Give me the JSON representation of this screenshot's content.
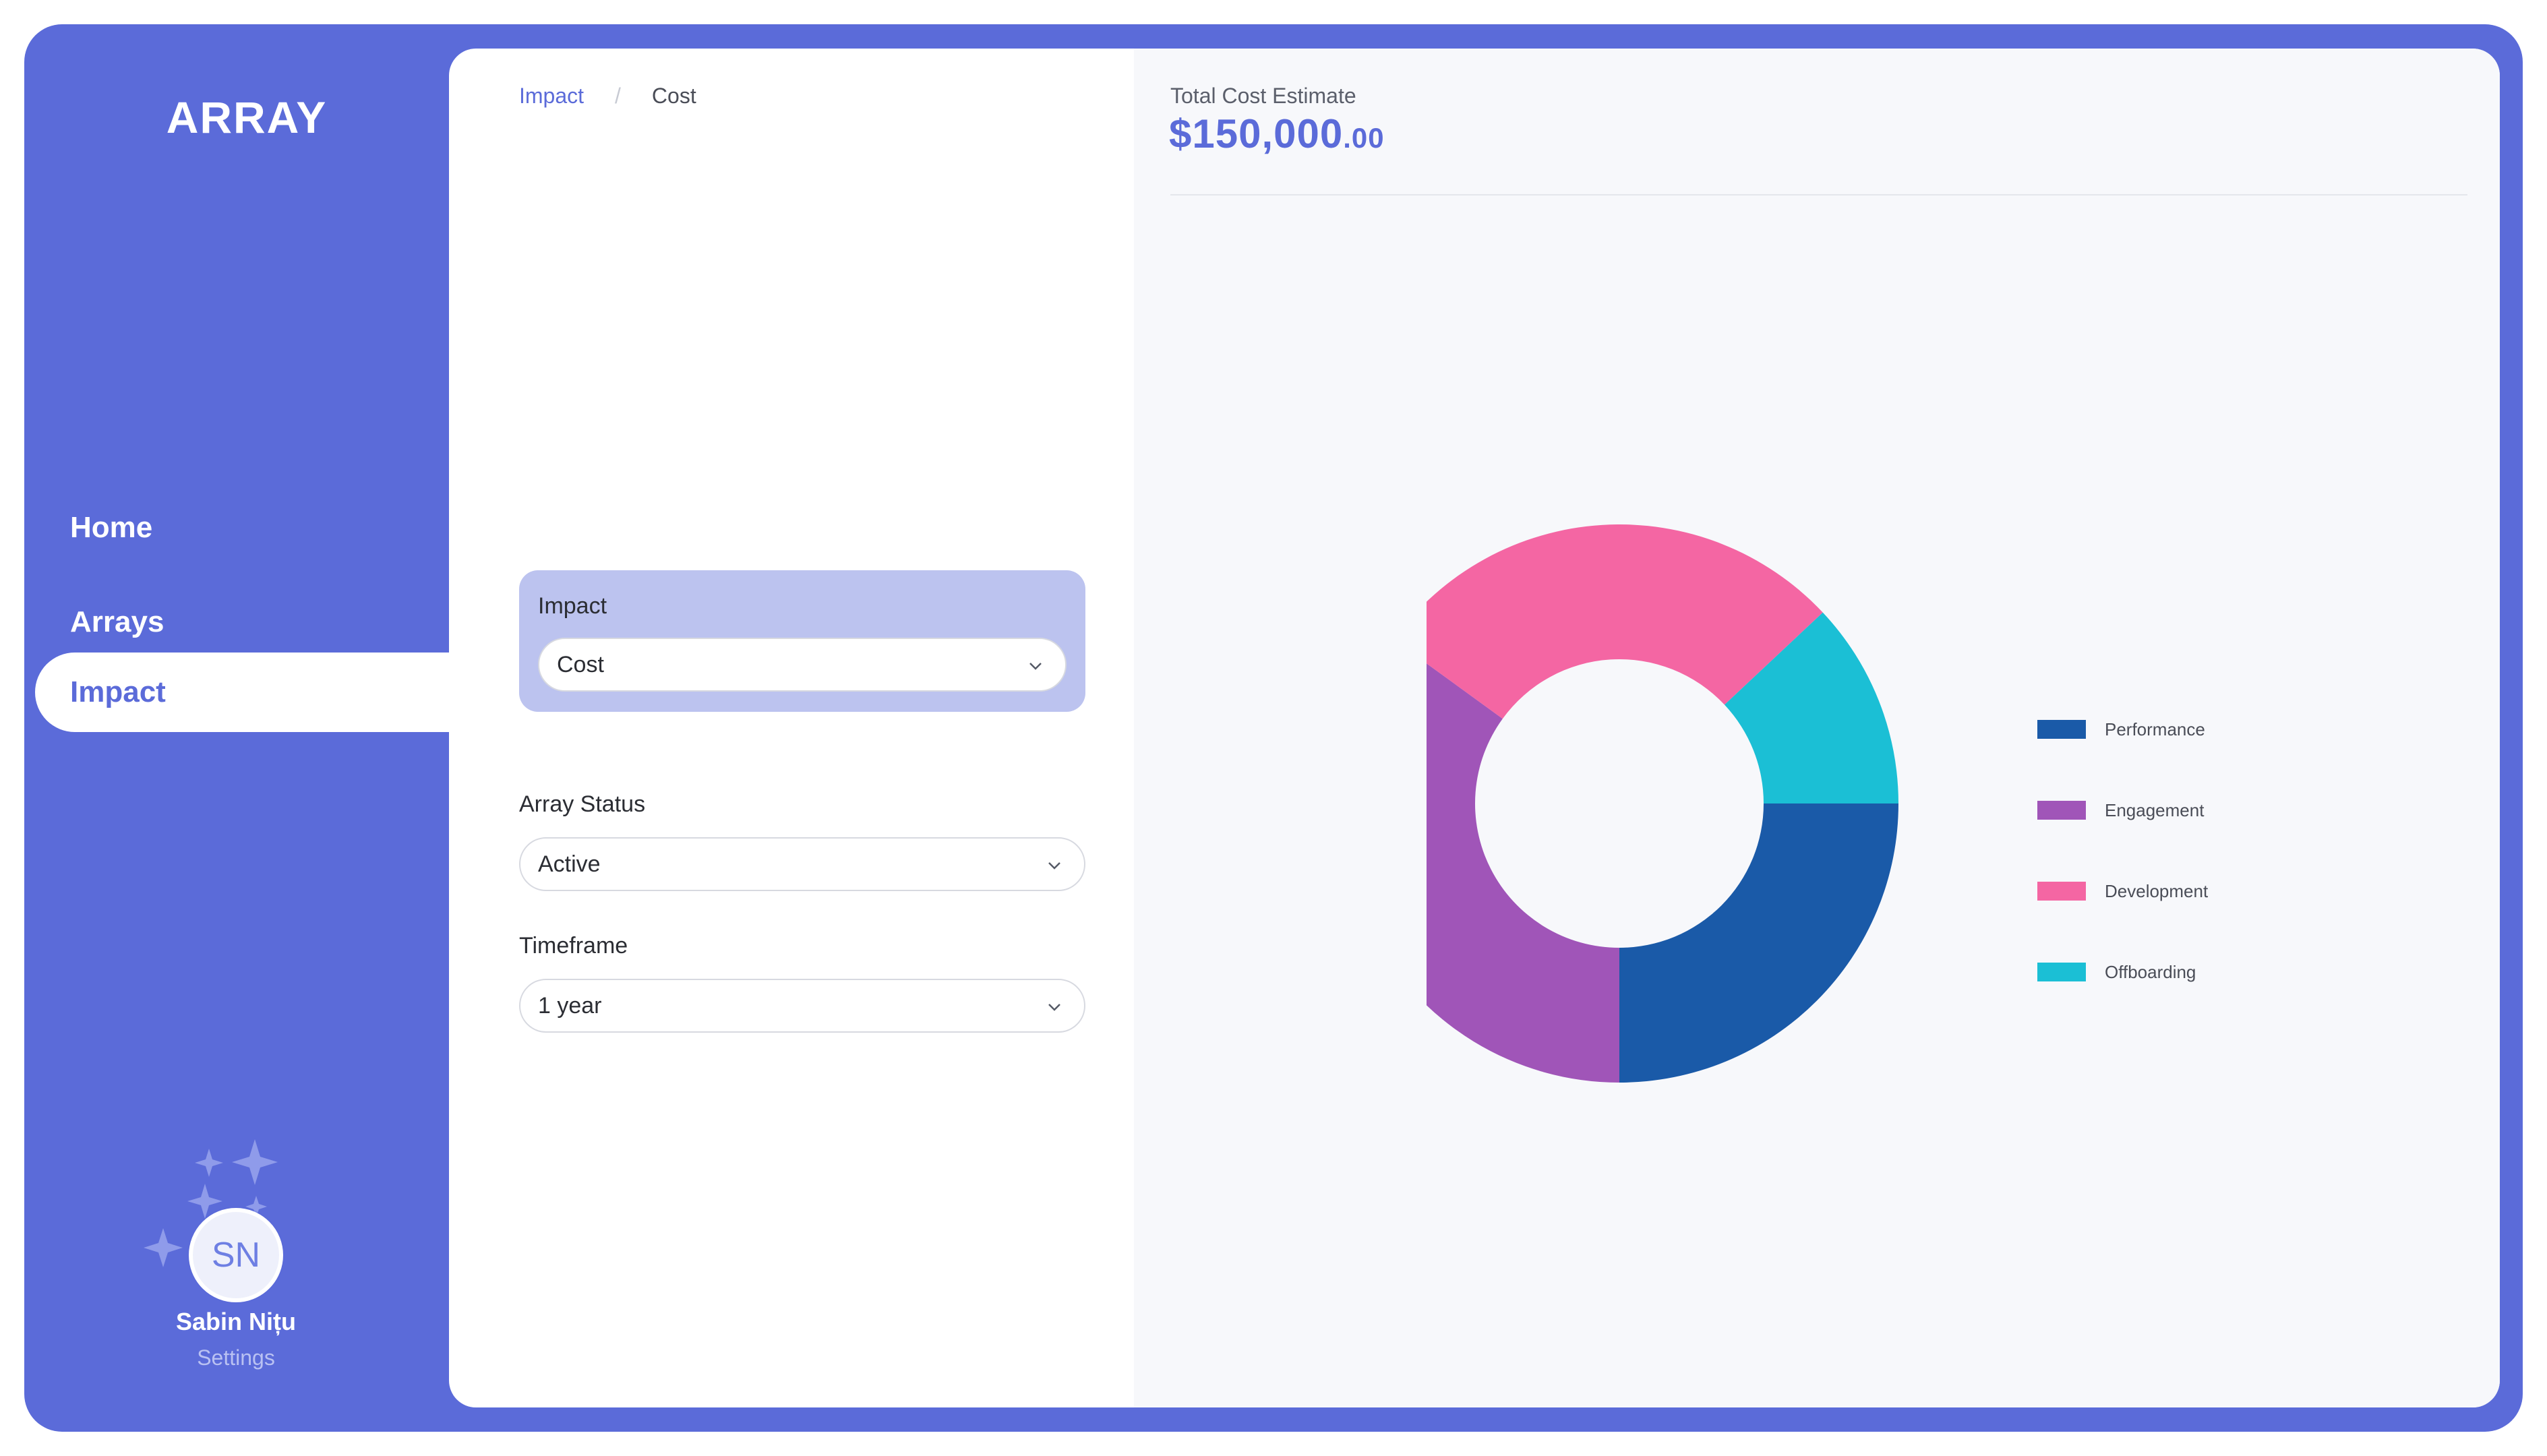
{
  "app": {
    "logo": "ARRAY"
  },
  "sidebar": {
    "items": [
      {
        "label": "Home"
      },
      {
        "label": "Arrays"
      },
      {
        "label": "Impact",
        "active": true
      }
    ]
  },
  "user": {
    "initials": "SN",
    "name": "Sabin Nițu",
    "settings_label": "Settings"
  },
  "breadcrumb": {
    "parent": "Impact",
    "current": "Cost"
  },
  "filters": {
    "impact": {
      "label": "Impact",
      "value": "Cost"
    },
    "status": {
      "label": "Array Status",
      "value": "Active"
    },
    "timeframe": {
      "label": "Timeframe",
      "value": "1 year"
    }
  },
  "summary": {
    "label": "Total Cost Estimate",
    "currency": "$",
    "amount": "150,000",
    "cents": ".00"
  },
  "colors": {
    "brand": "#5b6bd9",
    "performance": "#1a5aa8",
    "engagement": "#a055b8",
    "development": "#f466a3",
    "offboarding": "#1bbfd5"
  },
  "chart_data": {
    "type": "pie",
    "donut": true,
    "categories": [
      "Performance",
      "Engagement",
      "Development",
      "Offboarding"
    ],
    "values": [
      25,
      35,
      28,
      12
    ],
    "legend_position": "right"
  }
}
